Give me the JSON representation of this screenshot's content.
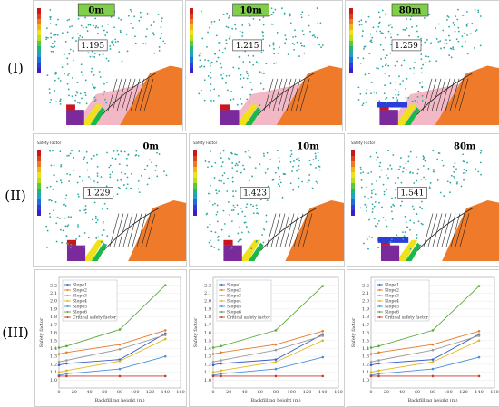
{
  "row_labels": [
    "(I)",
    "(II)",
    "(III)"
  ],
  "row1": [
    {
      "depth": "0m",
      "fs": "1.195"
    },
    {
      "depth": "10m",
      "fs": "1.215"
    },
    {
      "depth": "80m",
      "fs": "1.259"
    }
  ],
  "row2": [
    {
      "depth": "0m",
      "fs": "1.229"
    },
    {
      "depth": "10m",
      "fs": "1.423"
    },
    {
      "depth": "80m",
      "fs": "1.541"
    }
  ],
  "sf_title": "Safety Factor",
  "colors": {
    "depth_box_bg": "#7fcf4a",
    "slide_mass": "#ee7a2a",
    "pink_layer": "#f2b8c6",
    "yellow_layer": "#f0e11c",
    "green_layer": "#18b84a",
    "purple_layer": "#7a2a9a",
    "red_layer": "#c8181e",
    "blue_layer": "#2a3fd8",
    "slip_points": "#2aa9a2"
  },
  "chart_data": [
    {
      "type": "line",
      "xlabel": "Backfilling height (m)",
      "ylabel": "Safety factor",
      "xlim": [
        0,
        160
      ],
      "ylim": [
        0.9,
        2.3
      ],
      "xticks": [
        0,
        20,
        40,
        60,
        80,
        100,
        120,
        140,
        160
      ],
      "yticks": [
        1.0,
        1.1,
        1.2,
        1.3,
        1.4,
        1.5,
        1.6,
        1.7,
        1.8,
        1.9,
        2.0,
        2.1,
        2.2
      ],
      "x": [
        0,
        10,
        80,
        140
      ],
      "series": [
        {
          "name": "Slope1",
          "color": "#3b5fc8",
          "values": [
            1.19,
            1.21,
            1.26,
            1.59
          ]
        },
        {
          "name": "Slope2",
          "color": "#e87a2a",
          "values": [
            1.33,
            1.35,
            1.45,
            1.63
          ]
        },
        {
          "name": "Slope3",
          "color": "#9a9a9a",
          "values": [
            1.23,
            1.25,
            1.39,
            1.57
          ]
        },
        {
          "name": "Slope4",
          "color": "#e0b81c",
          "values": [
            1.1,
            1.12,
            1.24,
            1.52
          ]
        },
        {
          "name": "Slope5",
          "color": "#4a90d9",
          "values": [
            1.06,
            1.08,
            1.14,
            1.3
          ]
        },
        {
          "name": "Slope6",
          "color": "#5aaa3a",
          "values": [
            1.41,
            1.43,
            1.64,
            2.2
          ]
        },
        {
          "name": "Critical safety factor",
          "color": "#c83a2a",
          "values": [
            1.05,
            1.05,
            1.05,
            1.05
          ]
        }
      ]
    },
    {
      "type": "line",
      "xlabel": "Backfilling height (m)",
      "ylabel": "Safety factor",
      "xlim": [
        0,
        160
      ],
      "ylim": [
        0.9,
        2.3
      ],
      "xticks": [
        0,
        20,
        40,
        60,
        80,
        100,
        120,
        140,
        160
      ],
      "yticks": [
        1.0,
        1.1,
        1.2,
        1.3,
        1.4,
        1.5,
        1.6,
        1.7,
        1.8,
        1.9,
        2.0,
        2.1,
        2.2
      ],
      "x": [
        0,
        10,
        80,
        140
      ],
      "series": [
        {
          "name": "Slope1",
          "color": "#3b5fc8",
          "values": [
            1.19,
            1.21,
            1.26,
            1.58
          ]
        },
        {
          "name": "Slope2",
          "color": "#e87a2a",
          "values": [
            1.33,
            1.35,
            1.45,
            1.62
          ]
        },
        {
          "name": "Slope3",
          "color": "#9a9a9a",
          "values": [
            1.23,
            1.25,
            1.38,
            1.56
          ]
        },
        {
          "name": "Slope4",
          "color": "#e0b81c",
          "values": [
            1.1,
            1.12,
            1.23,
            1.5
          ]
        },
        {
          "name": "Slope5",
          "color": "#4a90d9",
          "values": [
            1.06,
            1.08,
            1.14,
            1.29
          ]
        },
        {
          "name": "Slope6",
          "color": "#5aaa3a",
          "values": [
            1.41,
            1.43,
            1.63,
            2.19
          ]
        },
        {
          "name": "Critical safety factor",
          "color": "#c83a2a",
          "values": [
            1.05,
            1.05,
            1.05,
            1.05
          ]
        }
      ]
    },
    {
      "type": "line",
      "xlabel": "Backfilling height (m)",
      "ylabel": "Safety factor",
      "xlim": [
        0,
        160
      ],
      "ylim": [
        0.9,
        2.3
      ],
      "xticks": [
        0,
        20,
        40,
        60,
        80,
        100,
        120,
        140,
        160
      ],
      "yticks": [
        1.0,
        1.1,
        1.2,
        1.3,
        1.4,
        1.5,
        1.6,
        1.7,
        1.8,
        1.9,
        2.0,
        2.1,
        2.2
      ],
      "x": [
        0,
        10,
        80,
        140
      ],
      "series": [
        {
          "name": "Slope1",
          "color": "#3b5fc8",
          "values": [
            1.19,
            1.21,
            1.26,
            1.58
          ]
        },
        {
          "name": "Slope2",
          "color": "#e87a2a",
          "values": [
            1.33,
            1.35,
            1.45,
            1.62
          ]
        },
        {
          "name": "Slope3",
          "color": "#9a9a9a",
          "values": [
            1.23,
            1.25,
            1.38,
            1.56
          ]
        },
        {
          "name": "Slope4",
          "color": "#e0b81c",
          "values": [
            1.1,
            1.12,
            1.23,
            1.5
          ]
        },
        {
          "name": "Slope5",
          "color": "#4a90d9",
          "values": [
            1.06,
            1.08,
            1.14,
            1.29
          ]
        },
        {
          "name": "Slope6",
          "color": "#5aaa3a",
          "values": [
            1.41,
            1.43,
            1.63,
            2.19
          ]
        },
        {
          "name": "Critical safety factor",
          "color": "#c83a2a",
          "values": [
            1.05,
            1.05,
            1.05,
            1.05
          ]
        }
      ]
    }
  ]
}
